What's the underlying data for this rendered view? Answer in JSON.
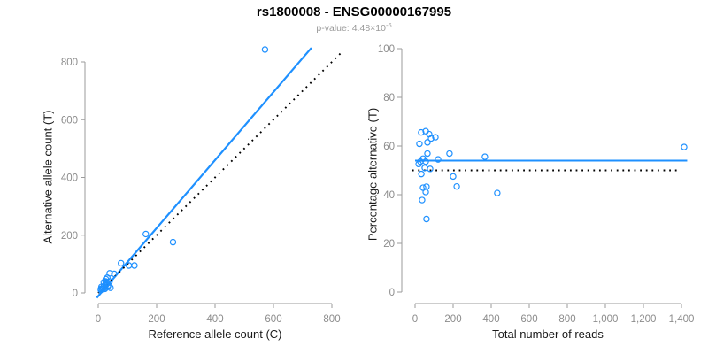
{
  "header": {
    "title": "rs1800008 - ENSG00000167995",
    "subtitle": {
      "label": "p-value:",
      "mantissa": "4.48",
      "times_base": "×10",
      "exponent": "-6"
    }
  },
  "colors": {
    "accent_blue": "#1E90FF",
    "line_black": "#000000",
    "axis_line": "#9b9b9b",
    "tick_text": "#8c8c8c",
    "axis_title_text": "#1a1a1a",
    "subtitle_text": "#9a9a9a",
    "title_text": "#000000",
    "background": "#ffffff"
  },
  "chart_data": [
    {
      "type": "scatter",
      "panel": "left",
      "title": "",
      "xlabel": "Reference allele count (C)",
      "ylabel": "Alternative allele count (T)",
      "xlim": [
        0,
        800
      ],
      "ylim": [
        0,
        800
      ],
      "grid": false,
      "legend": "none",
      "xticks": {
        "values": [
          0,
          200,
          400,
          600,
          800
        ],
        "labels": [
          "0",
          "200",
          "400",
          "600",
          "800"
        ]
      },
      "yticks": {
        "values": [
          0,
          200,
          400,
          600,
          800
        ],
        "labels": [
          "0",
          "200",
          "400",
          "600",
          "800"
        ]
      },
      "points": [
        [
          11,
          21
        ],
        [
          19,
          37
        ],
        [
          26,
          48
        ],
        [
          31,
          53
        ],
        [
          39,
          68
        ],
        [
          9,
          14
        ],
        [
          25,
          40
        ],
        [
          28,
          37
        ],
        [
          78,
          103
        ],
        [
          163,
          204
        ],
        [
          55,
          66
        ],
        [
          13,
          15
        ],
        [
          19,
          23
        ],
        [
          26,
          30
        ],
        [
          9,
          10
        ],
        [
          25,
          26
        ],
        [
          39,
          40
        ],
        [
          17,
          16
        ],
        [
          105,
          95
        ],
        [
          24,
          18
        ],
        [
          34,
          26
        ],
        [
          124,
          95
        ],
        [
          33,
          23
        ],
        [
          256,
          176
        ],
        [
          23,
          14
        ],
        [
          42,
          18
        ],
        [
          571,
          843
        ]
      ],
      "lines": [
        {
          "name": "regression-line",
          "style": "solid",
          "color": "accent_blue",
          "slope": 1.178,
          "intercept": -11,
          "x_range": [
            -5,
            730
          ],
          "width": 2.2
        },
        {
          "name": "identity-line",
          "style": "dotted",
          "color": "line_black",
          "slope": 1,
          "intercept": 0,
          "x_range": [
            0,
            838
          ],
          "width": 1.9
        }
      ]
    },
    {
      "type": "scatter",
      "panel": "right",
      "title": "",
      "xlabel": "Total number of reads",
      "ylabel": "Percentage alternative (T)",
      "xlim": [
        0,
        1400
      ],
      "ylim": [
        0,
        100
      ],
      "grid": false,
      "legend": "none",
      "xticks": {
        "values": [
          0,
          200,
          400,
          600,
          800,
          1000,
          1200,
          1400
        ],
        "labels": [
          "0",
          "200",
          "400",
          "600",
          "800",
          "1,000",
          "1,200",
          "1,400"
        ]
      },
      "yticks": {
        "values": [
          0,
          20,
          40,
          60,
          80,
          100
        ],
        "labels": [
          "0",
          "20",
          "40",
          "60",
          "80",
          "100"
        ]
      },
      "points": [
        [
          32,
          65.6
        ],
        [
          56,
          66.1
        ],
        [
          74,
          64.9
        ],
        [
          84,
          63.1
        ],
        [
          107,
          63.6
        ],
        [
          23,
          60.9
        ],
        [
          65,
          61.5
        ],
        [
          65,
          56.9
        ],
        [
          181,
          56.9
        ],
        [
          367,
          55.6
        ],
        [
          121,
          54.5
        ],
        [
          28,
          53.6
        ],
        [
          42,
          54.8
        ],
        [
          56,
          53.6
        ],
        [
          19,
          52.6
        ],
        [
          51,
          51.0
        ],
        [
          79,
          50.6
        ],
        [
          33,
          48.5
        ],
        [
          200,
          47.5
        ],
        [
          42,
          42.9
        ],
        [
          60,
          43.3
        ],
        [
          219,
          43.4
        ],
        [
          56,
          41.1
        ],
        [
          432,
          40.7
        ],
        [
          37,
          37.8
        ],
        [
          60,
          30.0
        ],
        [
          1414,
          59.6
        ]
      ],
      "lines": [
        {
          "name": "mean-percentage-line",
          "style": "solid",
          "color": "accent_blue",
          "slope": 0,
          "intercept": 54,
          "x_range": [
            0,
            1430
          ],
          "width": 2
        },
        {
          "name": "fifty-percent-reference-line",
          "style": "dotted",
          "color": "line_black",
          "slope": 0,
          "intercept": 50,
          "x_range": [
            -15,
            1400
          ],
          "width": 1.9
        }
      ]
    }
  ]
}
